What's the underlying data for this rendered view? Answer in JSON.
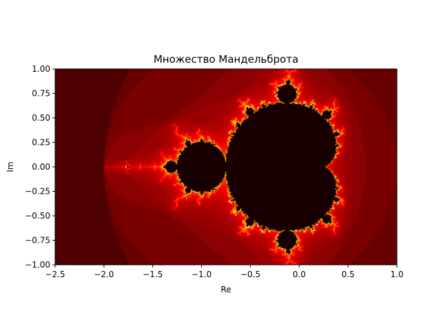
{
  "chart_data": {
    "type": "heatmap",
    "title": "Множество Мандельброта",
    "xlabel": "Re",
    "ylabel": "Im",
    "xlim": [
      -2.5,
      1.0
    ],
    "ylim": [
      -1.0,
      1.0
    ],
    "x_ticks": [
      -2.5,
      -2.0,
      -1.5,
      -1.0,
      -0.5,
      0.0,
      0.5,
      1.0
    ],
    "x_tick_labels": [
      "−2.5",
      "−2.0",
      "−1.5",
      "−1.0",
      "−0.5",
      "0.0",
      "0.5",
      "1.0"
    ],
    "y_ticks": [
      1.0,
      0.75,
      0.5,
      0.25,
      0.0,
      -0.25,
      -0.5,
      -0.75,
      -1.0
    ],
    "y_tick_labels": [
      "1.00",
      "0.75",
      "0.50",
      "0.25",
      "0.00",
      "−0.25",
      "−0.50",
      "−0.75",
      "−1.00"
    ],
    "colormap": "hot",
    "max_iterations": 100,
    "grid": false
  }
}
